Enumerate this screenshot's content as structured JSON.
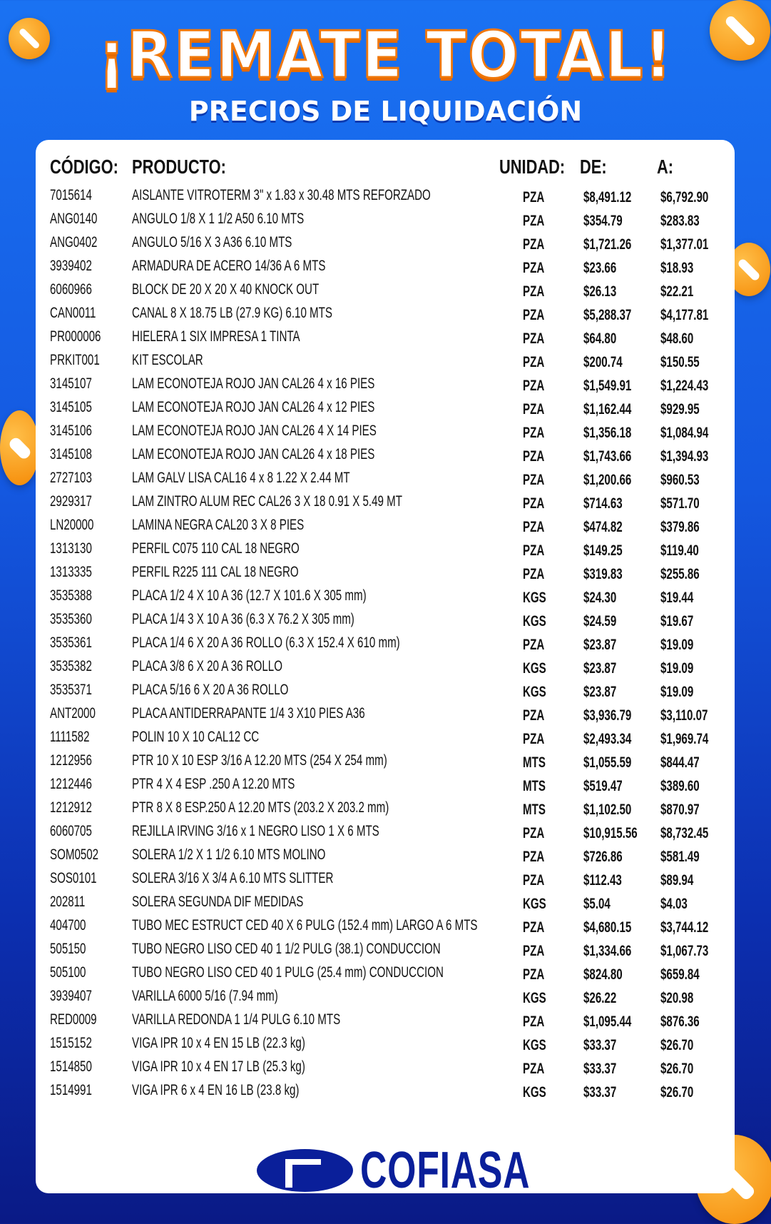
{
  "header": {
    "title": "¡REMATE TOTAL!",
    "subtitle": "PRECIOS DE LIQUIDACIÓN"
  },
  "colors": {
    "accent": "#f58a06",
    "brand": "#0a1f9a",
    "background": "#1a72f2"
  },
  "table": {
    "columns": [
      "CÓDIGO:",
      "PRODUCTO:",
      "UNIDAD:",
      "DE:",
      "A:"
    ],
    "rows": [
      [
        "7015614",
        "AISLANTE VITROTERM 3\" x 1.83 x 30.48 MTS REFORZADO",
        "PZA",
        "$8,491.12",
        "$6,792.90"
      ],
      [
        "ANG0140",
        "ANGULO 1/8 X 1 1/2 A50 6.10 MTS",
        "PZA",
        "$354.79",
        "$283.83"
      ],
      [
        "ANG0402",
        "ANGULO 5/16 X 3 A36 6.10 MTS",
        "PZA",
        "$1,721.26",
        "$1,377.01"
      ],
      [
        "3939402",
        "ARMADURA DE ACERO 14/36 A 6 MTS",
        "PZA",
        "$23.66",
        "$18.93"
      ],
      [
        "6060966",
        "BLOCK DE 20 X 20 X 40 KNOCK OUT",
        "PZA",
        "$26.13",
        "$22.21"
      ],
      [
        "CAN0011",
        "CANAL 8 X 18.75 LB (27.9 KG) 6.10 MTS",
        "PZA",
        "$5,288.37",
        "$4,177.81"
      ],
      [
        "PR000006",
        "HIELERA 1 SIX IMPRESA 1 TINTA",
        "PZA",
        "$64.80",
        "$48.60"
      ],
      [
        "PRKIT001",
        "KIT ESCOLAR",
        "PZA",
        "$200.74",
        "$150.55"
      ],
      [
        "3145107",
        "LAM ECONOTEJA ROJO JAN CAL26  4 x 16 PIES",
        "PZA",
        "$1,549.91",
        "$1,224.43"
      ],
      [
        "3145105",
        "LAM ECONOTEJA ROJO JAN CAL26 4 x 12 PIES",
        "PZA",
        "$1,162.44",
        "$929.95"
      ],
      [
        "3145106",
        "LAM ECONOTEJA ROJO JAN CAL26 4 X 14 PIES",
        "PZA",
        "$1,356.18",
        "$1,084.94"
      ],
      [
        "3145108",
        "LAM ECONOTEJA ROJO JAN CAL26 4 x 18 PIES",
        "PZA",
        "$1,743.66",
        "$1,394.93"
      ],
      [
        "2727103",
        "LAM GALV LISA CAL16 4 x 8    1.22 X 2.44 MT",
        "PZA",
        "$1,200.66",
        "$960.53"
      ],
      [
        "2929317",
        "LAM ZINTRO ALUM REC CAL26 3 X 18    0.91 X 5.49 MT",
        "PZA",
        "$714.63",
        "$571.70"
      ],
      [
        "LN20000",
        "LAMINA NEGRA CAL20 3 X 8 PIES",
        "PZA",
        "$474.82",
        "$379.86"
      ],
      [
        "1313130",
        "PERFIL C075 110 CAL 18 NEGRO",
        "PZA",
        "$149.25",
        "$119.40"
      ],
      [
        "1313335",
        "PERFIL R225 111 CAL 18 NEGRO",
        "PZA",
        "$319.83",
        "$255.86"
      ],
      [
        "3535388",
        "PLACA 1/2 4 X 10 A 36 (12.7 X 101.6 X 305 mm)",
        "KGS",
        "$24.30",
        "$19.44"
      ],
      [
        "3535360",
        "PLACA 1/4 3 X 10 A 36 (6.3 X 76.2 X 305 mm)",
        "KGS",
        "$24.59",
        "$19.67"
      ],
      [
        "3535361",
        "PLACA 1/4 6 X 20 A 36 ROLLO (6.3 X 152.4 X 610 mm)",
        "PZA",
        "$23.87",
        "$19.09"
      ],
      [
        "3535382",
        "PLACA 3/8 6 X 20 A 36 ROLLO",
        "KGS",
        "$23.87",
        "$19.09"
      ],
      [
        "3535371",
        "PLACA 5/16 6 X 20 A 36 ROLLO",
        "KGS",
        "$23.87",
        "$19.09"
      ],
      [
        "ANT2000",
        "PLACA ANTIDERRAPANTE 1/4 3 X10 PIES A36",
        "PZA",
        "$3,936.79",
        "$3,110.07"
      ],
      [
        "1111582",
        "POLIN 10 X 10 CAL12 CC",
        "PZA",
        "$2,493.34",
        "$1,969.74"
      ],
      [
        "1212956",
        "PTR 10 X 10 ESP 3/16 A 12.20 MTS (254 X 254 mm)",
        "MTS",
        "$1,055.59",
        "$844.47"
      ],
      [
        "1212446",
        "PTR 4 X 4 ESP .250  A  12.20 MTS",
        "MTS",
        "$519.47",
        "$389.60"
      ],
      [
        "1212912",
        "PTR 8 X 8 ESP.250   A  12.20 MTS (203.2 X 203.2 mm)",
        "MTS",
        "$1,102.50",
        "$870.97"
      ],
      [
        "6060705",
        "REJILLA IRVING 3/16 x 1 NEGRO LISO 1 X 6 MTS",
        "PZA",
        "$10,915.56",
        "$8,732.45"
      ],
      [
        "SOM0502",
        "SOLERA 1/2 X 1 1/2 6.10 MTS MOLINO",
        "PZA",
        "$726.86",
        "$581.49"
      ],
      [
        "SOS0101",
        "SOLERA 3/16 X 3/4 A 6.10 MTS SLITTER",
        "PZA",
        "$112.43",
        "$89.94"
      ],
      [
        "202811",
        "SOLERA SEGUNDA DIF MEDIDAS",
        "KGS",
        "$5.04",
        "$4.03"
      ],
      [
        "404700",
        "TUBO MEC ESTRUCT CED 40 X 6 PULG (152.4 mm) LARGO A 6 MTS",
        "PZA",
        "$4,680.15",
        "$3,744.12"
      ],
      [
        "505150",
        "TUBO NEGRO LISO CED 40 1 1/2 PULG (38.1) CONDUCCION",
        "PZA",
        "$1,334.66",
        "$1,067.73"
      ],
      [
        "505100",
        "TUBO NEGRO LISO CED 40 1 PULG (25.4 mm) CONDUCCION",
        "PZA",
        "$824.80",
        "$659.84"
      ],
      [
        "3939407",
        "VARILLA 6000 5/16 (7.94 mm)",
        "KGS",
        "$26.22",
        "$20.98"
      ],
      [
        "RED0009",
        "VARILLA REDONDA 1 1/4 PULG 6.10 MTS",
        "PZA",
        "$1,095.44",
        "$876.36"
      ],
      [
        "1515152",
        "VIGA IPR 10 x 4 EN 15 LB (22.3 kg)",
        "KGS",
        "$33.37",
        "$26.70"
      ],
      [
        "1514850",
        "VIGA IPR 10 x 4 EN 17 LB (25.3 kg)",
        "PZA",
        "$33.37",
        "$26.70"
      ],
      [
        "1514991",
        "VIGA IPR 6 x 4 EN 16 LB (23.8 kg)",
        "KGS",
        "$33.37",
        "$26.70"
      ]
    ]
  },
  "footer": {
    "brand": "COFIASA"
  }
}
